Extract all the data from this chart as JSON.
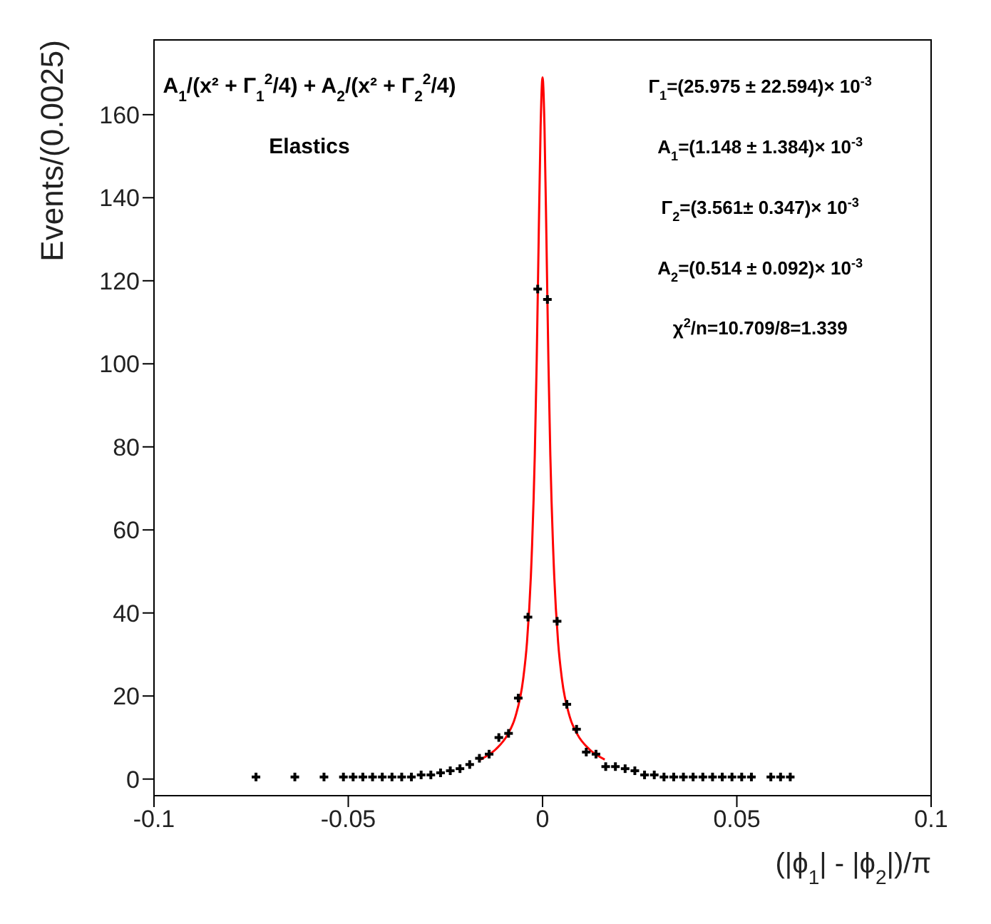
{
  "chart_data": {
    "type": "scatter",
    "xlabel": "(|ϕ$_{1}$| - |ϕ$_{2}$|)/π",
    "ylabel": "Events/(0.0025)",
    "xlim": [
      -0.1,
      0.1
    ],
    "xticks": [
      -0.1,
      -0.05,
      0,
      0.05,
      0.1
    ],
    "ylim": [
      -4,
      178
    ],
    "yticks": [
      0,
      20,
      40,
      60,
      80,
      100,
      120,
      140,
      160
    ],
    "annotations": [
      "A$_{1}$/(x² + Γ$_{1}$$^{2}$/4) + A$_{2}$/(x² + Γ$_{2}$$^{2}$/4)",
      "Elastics",
      "Γ$_{1}$=(25.975 ± 22.594)× 10$^{-3}$",
      "A$_{1}$=(1.148 ± 1.384)× 10$^{-3}$",
      "Γ$_{2}$=(3.561± 0.347)× 10$^{-3}$",
      "A$_{2}$=(0.514 ± 0.092)× 10$^{-3}$",
      "χ$^{2}$/n=10.709/8=1.339"
    ],
    "series": [
      {
        "marker": "cross",
        "color": "#000000",
        "x": [
          -0.07375,
          -0.06375,
          -0.05625,
          -0.05125,
          -0.04875,
          -0.04625,
          -0.04375,
          -0.04125,
          -0.03875,
          -0.03625,
          -0.03375,
          -0.03125,
          -0.02875,
          -0.02625,
          -0.02375,
          -0.02125,
          -0.01875,
          -0.01625,
          -0.01375,
          -0.01125,
          -0.00875,
          -0.00625,
          -0.00375,
          -0.00125,
          0.00125,
          0.00375,
          0.00625,
          0.00875,
          0.01125,
          0.01375,
          0.01625,
          0.01875,
          0.02125,
          0.02375,
          0.02625,
          0.02875,
          0.03125,
          0.03375,
          0.03625,
          0.03875,
          0.04125,
          0.04375,
          0.04625,
          0.04875,
          0.05125,
          0.05375,
          0.05875,
          0.06125,
          0.06375
        ],
        "values": [
          0.5,
          0.5,
          0.5,
          0.5,
          0.5,
          0.5,
          0.5,
          0.5,
          0.5,
          0.5,
          0.5,
          1,
          1,
          1.5,
          2,
          2.5,
          3.5,
          5,
          6,
          10,
          11,
          19.5,
          39,
          118,
          115.5,
          38,
          18,
          12,
          6.5,
          6,
          3,
          3,
          2.5,
          2,
          1,
          1,
          0.5,
          0.5,
          0.5,
          0.5,
          0.5,
          0.5,
          0.5,
          0.5,
          0.5,
          0.5,
          0.5,
          0.5,
          0.5
        ]
      },
      {
        "type": "line",
        "color": "#ff0000",
        "x": [
          -0.016,
          -0.012,
          -0.009,
          -0.007,
          -0.005,
          -0.004,
          -0.003,
          -0.002,
          -0.0015,
          -0.001,
          -0.0005,
          0,
          0.0005,
          0.001,
          0.0015,
          0.002,
          0.003,
          0.004,
          0.005,
          0.007,
          0.009,
          0.012,
          0.016
        ],
        "values": [
          4.7,
          7.2,
          10.7,
          15,
          24,
          33,
          49,
          78,
          101,
          130,
          157,
          169,
          157,
          130,
          101,
          78,
          49,
          33,
          24,
          15,
          10.7,
          7.2,
          4.7
        ]
      }
    ]
  }
}
